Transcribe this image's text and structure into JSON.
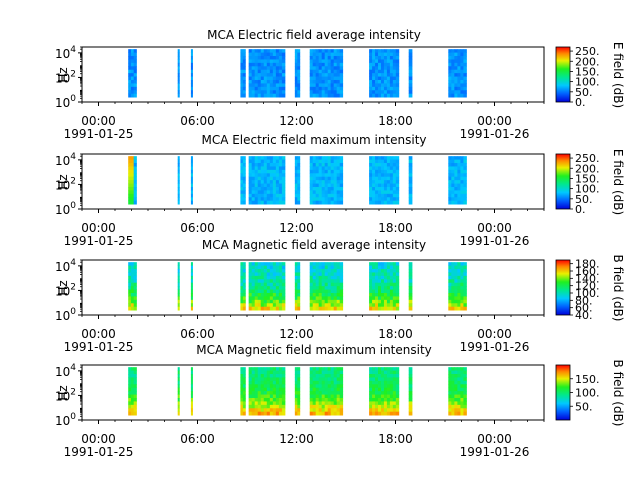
{
  "chart_data": [
    {
      "type": "heatmap",
      "title": "MCA  Electric field average intensity",
      "ylabel": "Hz",
      "yscale": "log",
      "ylim": [
        1,
        30000
      ],
      "yticks": [
        {
          "base": "10",
          "exp": "0"
        },
        {
          "base": "10",
          "exp": "2"
        },
        {
          "base": "10",
          "exp": "4"
        }
      ],
      "xticks": [
        {
          "time": "00:00",
          "date": "1991-01-25"
        },
        {
          "time": "06:00",
          "date": ""
        },
        {
          "time": "12:00",
          "date": ""
        },
        {
          "time": "18:00",
          "date": ""
        },
        {
          "time": "00:00",
          "date": "1991-01-26"
        }
      ],
      "xlim_hours": [
        -1,
        27
      ],
      "colorbar": {
        "label": "E field (dB)",
        "min": 0,
        "max": 270,
        "ticks": [
          "0.",
          "50.",
          "100.",
          "150.",
          "200.",
          "250."
        ],
        "tick_values": [
          0,
          50,
          100,
          150,
          200,
          250
        ]
      },
      "segments_hours": [
        [
          1.8,
          2.3
        ],
        [
          4.8,
          4.9
        ],
        [
          5.6,
          5.7
        ],
        [
          8.6,
          8.9
        ],
        [
          9.1,
          11.3
        ],
        [
          11.9,
          12.2
        ],
        [
          12.8,
          14.8
        ],
        [
          16.4,
          18.2
        ],
        [
          18.8,
          19.0
        ],
        [
          21.2,
          22.3
        ]
      ],
      "intensity": {
        "base": 60,
        "low_freq_boost": 0,
        "spike_at_hour": null,
        "spike_value": 0
      }
    },
    {
      "type": "heatmap",
      "title": "MCA  Electric field maximum intensity",
      "ylabel": "Hz",
      "yscale": "log",
      "ylim": [
        1,
        30000
      ],
      "yticks": [
        {
          "base": "10",
          "exp": "0"
        },
        {
          "base": "10",
          "exp": "2"
        },
        {
          "base": "10",
          "exp": "4"
        }
      ],
      "xticks": [
        {
          "time": "00:00",
          "date": "1991-01-25"
        },
        {
          "time": "06:00",
          "date": ""
        },
        {
          "time": "12:00",
          "date": ""
        },
        {
          "time": "18:00",
          "date": ""
        },
        {
          "time": "00:00",
          "date": "1991-01-26"
        }
      ],
      "xlim_hours": [
        -1,
        27
      ],
      "colorbar": {
        "label": "E field (dB)",
        "min": 0,
        "max": 270,
        "ticks": [
          "0.",
          "50.",
          "100.",
          "150.",
          "200.",
          "250."
        ],
        "tick_values": [
          0,
          50,
          100,
          150,
          200,
          250
        ]
      },
      "segments_hours": [
        [
          1.8,
          2.3
        ],
        [
          4.8,
          4.9
        ],
        [
          5.6,
          5.7
        ],
        [
          8.6,
          8.9
        ],
        [
          9.1,
          11.3
        ],
        [
          11.9,
          12.2
        ],
        [
          12.8,
          14.8
        ],
        [
          16.4,
          18.2
        ],
        [
          18.8,
          19.0
        ],
        [
          21.2,
          22.3
        ]
      ],
      "intensity": {
        "base": 75,
        "low_freq_boost": 0,
        "spike_at_hour": 1.9,
        "spike_value": 230
      }
    },
    {
      "type": "heatmap",
      "title": "MCA  Magnetic field average intensity",
      "ylabel": "Hz",
      "yscale": "log",
      "ylim": [
        1,
        30000
      ],
      "yticks": [
        {
          "base": "10",
          "exp": "0"
        },
        {
          "base": "10",
          "exp": "2"
        },
        {
          "base": "10",
          "exp": "4"
        }
      ],
      "xticks": [
        {
          "time": "00:00",
          "date": "1991-01-25"
        },
        {
          "time": "06:00",
          "date": ""
        },
        {
          "time": "12:00",
          "date": ""
        },
        {
          "time": "18:00",
          "date": ""
        },
        {
          "time": "00:00",
          "date": "1991-01-26"
        }
      ],
      "xlim_hours": [
        -1,
        27
      ],
      "colorbar": {
        "label": "B field (dB)",
        "min": 40,
        "max": 190,
        "ticks": [
          "40.",
          "60.",
          "80.",
          "100.",
          "120.",
          "140.",
          "160.",
          "180."
        ],
        "tick_values": [
          40,
          60,
          80,
          100,
          120,
          140,
          160,
          180
        ]
      },
      "segments_hours": [
        [
          1.8,
          2.3
        ],
        [
          4.8,
          4.9
        ],
        [
          5.6,
          5.7
        ],
        [
          8.6,
          8.9
        ],
        [
          9.1,
          11.3
        ],
        [
          11.9,
          12.2
        ],
        [
          12.8,
          14.8
        ],
        [
          16.4,
          18.2
        ],
        [
          18.8,
          19.0
        ],
        [
          21.2,
          22.3
        ]
      ],
      "intensity": {
        "base": 95,
        "low_freq_boost": 60,
        "spike_at_hour": null,
        "spike_value": 0
      }
    },
    {
      "type": "heatmap",
      "title": "MCA  Magnetic field maximum intensity",
      "ylabel": "Hz",
      "yscale": "log",
      "ylim": [
        1,
        30000
      ],
      "yticks": [
        {
          "base": "10",
          "exp": "0"
        },
        {
          "base": "10",
          "exp": "2"
        },
        {
          "base": "10",
          "exp": "4"
        }
      ],
      "xticks": [
        {
          "time": "00:00",
          "date": "1991-01-25"
        },
        {
          "time": "06:00",
          "date": ""
        },
        {
          "time": "12:00",
          "date": ""
        },
        {
          "time": "18:00",
          "date": ""
        },
        {
          "time": "00:00",
          "date": "1991-01-26"
        }
      ],
      "xlim_hours": [
        -1,
        27
      ],
      "colorbar": {
        "label": "B field (dB)",
        "min": 0,
        "max": 200,
        "ticks": [
          "50.",
          "100.",
          "150."
        ],
        "tick_values": [
          50,
          100,
          150
        ]
      },
      "segments_hours": [
        [
          1.8,
          2.3
        ],
        [
          4.8,
          4.9
        ],
        [
          5.6,
          5.7
        ],
        [
          8.6,
          8.9
        ],
        [
          9.1,
          11.3
        ],
        [
          11.9,
          12.2
        ],
        [
          12.8,
          14.8
        ],
        [
          16.4,
          18.2
        ],
        [
          18.8,
          19.0
        ],
        [
          21.2,
          22.3
        ]
      ],
      "intensity": {
        "base": 95,
        "low_freq_boost": 70,
        "spike_at_hour": null,
        "spike_value": 0
      }
    }
  ]
}
